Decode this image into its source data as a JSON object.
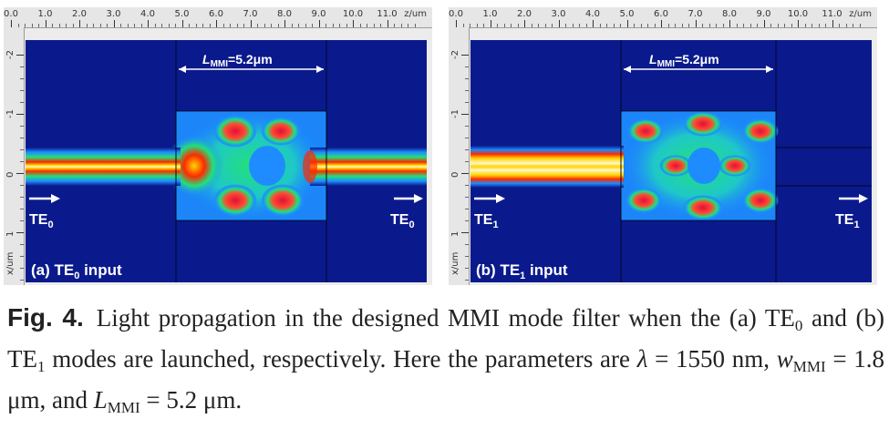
{
  "figure": {
    "panels": [
      {
        "id": "a",
        "tag_prefix": "(a) TE",
        "tag_sub": "0",
        "tag_suffix": " input",
        "input_mode": "TE",
        "input_mode_sub": "0",
        "output_mode": "TE",
        "output_mode_sub": "0",
        "dimension_label": "L",
        "dimension_sub": "MMI",
        "dimension_value": "=5.2μm"
      },
      {
        "id": "b",
        "tag_prefix": "(b) TE",
        "tag_sub": "1",
        "tag_suffix": " input",
        "input_mode": "TE",
        "input_mode_sub": "1",
        "output_mode": "TE",
        "output_mode_sub": "1",
        "dimension_label": "L",
        "dimension_sub": "MMI",
        "dimension_value": "=5.2μm"
      }
    ],
    "ruler": {
      "x_ticks": [
        "0.0",
        "1.0",
        "2.0",
        "3.0",
        "4.0",
        "5.0",
        "6.0",
        "7.0",
        "8.0",
        "9.0",
        "10.0",
        "11.0"
      ],
      "x_unit": "z/um",
      "y_ticks": [
        "-2",
        "-1",
        "0",
        "1"
      ],
      "y_unit": "x/um"
    },
    "colors": {
      "background_field": "#0a1a8c",
      "hot_core": "#fff8c8",
      "warm": "#ff2a00",
      "mid": "#ffd400",
      "cool": "#22e07a",
      "cold": "#1e8cff"
    }
  },
  "caption": {
    "fig_label": "Fig. 4.",
    "part1": "Light propagation in the designed MMI mode filter when the (a) TE",
    "sub1": "0",
    "part2": " and (b) TE",
    "sub2": "1",
    "part3": " modes are launched, respectively. Here the parameters are ",
    "lambda_sym": "λ",
    "part4": " = 1550 nm, ",
    "w_sym": "w",
    "w_sub": "MMI",
    "part5": " = 1.8 μm, and ",
    "l_sym": "L",
    "l_sub": "MMI",
    "part6": " = 5.2 μm."
  }
}
